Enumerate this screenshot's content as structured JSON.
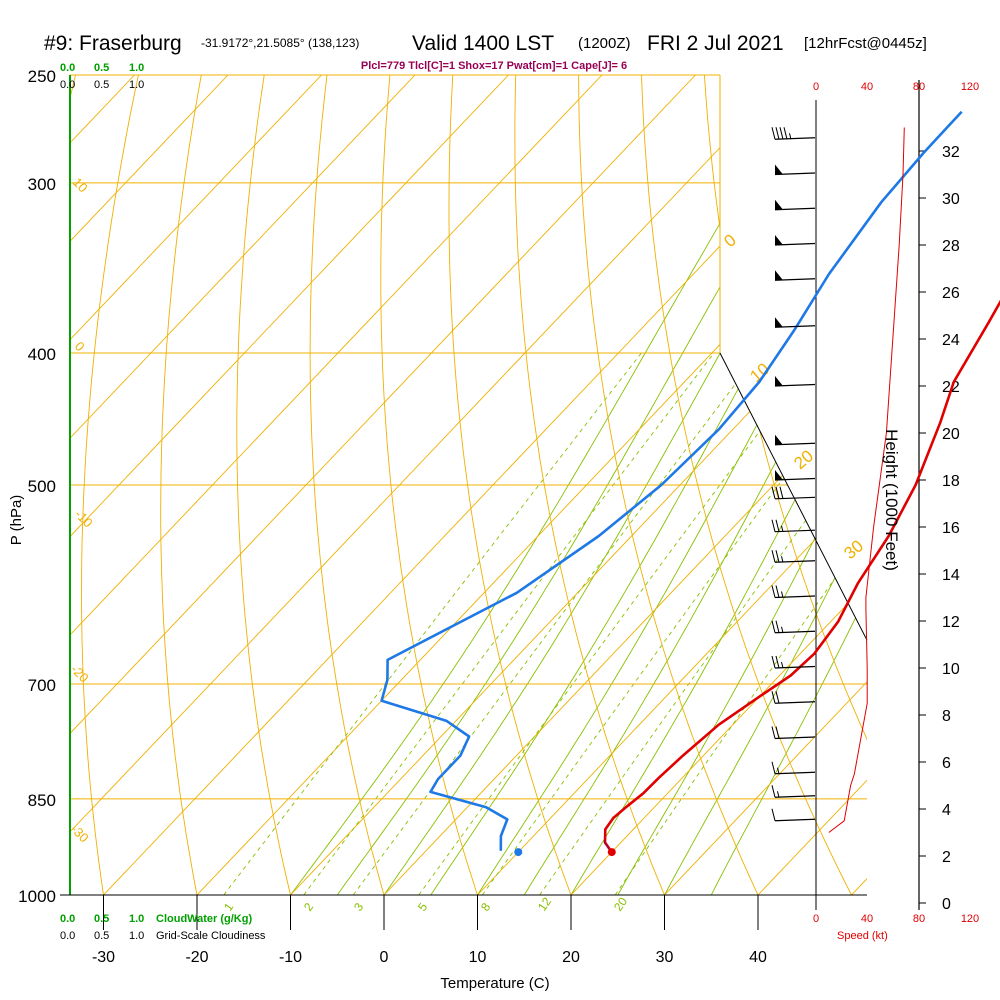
{
  "header": {
    "station": "#9: Fraserburg",
    "coords": "-31.9172°,21.5085° (138,123)",
    "valid_main": "Valid 1400 LST",
    "valid_z": "(1200Z)",
    "valid_date": "FRI 2 Jul 2021",
    "forecast": "[12hrFcst@0445z]",
    "indices": "Plcl=779 Tlcl[C]=1 Shox=17 Pwat[cm]=1 Cape[J]= 6"
  },
  "colors": {
    "isotherm": "#f0b000",
    "dry_adiabat": "#f0b000",
    "moist_adiabat": "#88c000",
    "mixing_ratio": "#88c000",
    "temperature": "#e00000",
    "dewpoint": "#1e78e6",
    "cloud": "#00a000",
    "speed": "#e00000",
    "indices": "#990055"
  },
  "cloud_scale": {
    "top_green": [
      "0.0",
      "0.5",
      "1.0"
    ],
    "top_black": [
      "0.0",
      "0.5",
      "1.0"
    ],
    "bottom_green": [
      "0.0",
      "0.5",
      "1.0"
    ],
    "bottom_green_label": "CloudWater (g/Kg)",
    "bottom_black": [
      "0.0",
      "0.5",
      "1.0"
    ],
    "bottom_black_label": "Grid-Scale Cloudiness"
  },
  "wind_scale": {
    "top": [
      "0",
      "40",
      "80",
      "120"
    ],
    "bottom": [
      "0",
      "40",
      "80",
      "120"
    ],
    "label": "Speed (kt)"
  },
  "chart_data": {
    "type": "line",
    "title": "#9: Fraserburg",
    "xlabel": "Temperature (C)",
    "ylabel": "P (hPa)",
    "y2label": "Height (1000 Feet)",
    "pressure_ticks": [
      250,
      300,
      400,
      500,
      700,
      850,
      1000
    ],
    "temperature_ticks": [
      -30,
      -20,
      -10,
      0,
      10,
      20,
      30,
      40
    ],
    "height_ticks": [
      0,
      2,
      4,
      6,
      8,
      10,
      12,
      14,
      16,
      18,
      20,
      22,
      24,
      26,
      28,
      30,
      32
    ],
    "xlim": [
      -33,
      46
    ],
    "ylim": [
      1000,
      250
    ],
    "isotherm_labels": [
      "0",
      "10",
      "20",
      "30"
    ],
    "dry_adiabat_labels": [
      "10",
      "0",
      "-10",
      "-20",
      "-30"
    ],
    "mixing_ratio_labels": [
      "1",
      "2",
      "3",
      "5",
      "8",
      "12",
      "20"
    ],
    "series": [
      {
        "name": "Temperature",
        "points": [
          [
            20.0,
            930
          ],
          [
            18.3,
            915
          ],
          [
            17.0,
            895
          ],
          [
            16.7,
            878
          ],
          [
            17.0,
            860
          ],
          [
            17.4,
            842
          ],
          [
            17.5,
            820
          ],
          [
            17.8,
            790
          ],
          [
            18.5,
            750
          ],
          [
            20.0,
            715
          ],
          [
            21.2,
            690
          ],
          [
            21.5,
            665
          ],
          [
            20.8,
            630
          ],
          [
            19.0,
            590
          ],
          [
            17.5,
            545
          ],
          [
            15.2,
            500
          ],
          [
            11.5,
            450
          ],
          [
            8.8,
            420
          ],
          [
            6.5,
            380
          ],
          [
            4.5,
            350
          ],
          [
            2.5,
            320
          ],
          [
            0.8,
            295
          ],
          [
            0.3,
            276
          ]
        ]
      },
      {
        "name": "Dewpoint",
        "points": [
          [
            8.0,
            928
          ],
          [
            6.5,
            905
          ],
          [
            5.5,
            880
          ],
          [
            2.0,
            862
          ],
          [
            -5.5,
            840
          ],
          [
            -6.0,
            822
          ],
          [
            -6.0,
            790
          ],
          [
            -7.0,
            765
          ],
          [
            -11.0,
            745
          ],
          [
            -20.0,
            720
          ],
          [
            -21.5,
            695
          ],
          [
            -23.5,
            672
          ],
          [
            -20.5,
            640
          ],
          [
            -16.5,
            600
          ],
          [
            -13.5,
            545
          ],
          [
            -12.0,
            500
          ],
          [
            -11.5,
            455
          ],
          [
            -12.0,
            420
          ],
          [
            -13.5,
            385
          ],
          [
            -15.5,
            350
          ],
          [
            -17.2,
            310
          ],
          [
            -17.7,
            285
          ],
          [
            -17.8,
            266
          ]
        ]
      }
    ],
    "surface_temperature": 20.0,
    "surface_dewpoint": 10.0,
    "surface_pressure": 930,
    "wind_barbs": [
      {
        "height_kft": 32.5,
        "speed_kt": 45
      },
      {
        "height_kft": 31.0,
        "speed_kt": 50
      },
      {
        "height_kft": 29.5,
        "speed_kt": 50
      },
      {
        "height_kft": 28.0,
        "speed_kt": 50
      },
      {
        "height_kft": 26.5,
        "speed_kt": 50
      },
      {
        "height_kft": 24.5,
        "speed_kt": 50
      },
      {
        "height_kft": 22.0,
        "speed_kt": 50
      },
      {
        "height_kft": 19.5,
        "speed_kt": 50
      },
      {
        "height_kft": 18.0,
        "speed_kt": 50
      },
      {
        "height_kft": 17.2,
        "speed_kt": 30
      },
      {
        "height_kft": 15.8,
        "speed_kt": 25
      },
      {
        "height_kft": 14.5,
        "speed_kt": 25
      },
      {
        "height_kft": 13.0,
        "speed_kt": 25
      },
      {
        "height_kft": 11.5,
        "speed_kt": 25
      },
      {
        "height_kft": 10.0,
        "speed_kt": 25
      },
      {
        "height_kft": 8.5,
        "speed_kt": 20
      },
      {
        "height_kft": 7.0,
        "speed_kt": 20
      },
      {
        "height_kft": 5.5,
        "speed_kt": 15
      },
      {
        "height_kft": 4.5,
        "speed_kt": 15
      },
      {
        "height_kft": 3.5,
        "speed_kt": 10
      }
    ],
    "wind_speed_profile": [
      [
        10,
        3.0
      ],
      [
        22,
        3.5
      ],
      [
        27,
        5.0
      ],
      [
        30,
        5.5
      ],
      [
        40,
        8.5
      ],
      [
        40,
        10.0
      ],
      [
        39,
        12.5
      ],
      [
        39,
        13.0
      ],
      [
        45,
        16.0
      ],
      [
        55,
        20.0
      ],
      [
        60,
        24.0
      ],
      [
        65,
        28.0
      ],
      [
        68,
        31.0
      ],
      [
        69,
        33.0
      ]
    ]
  }
}
